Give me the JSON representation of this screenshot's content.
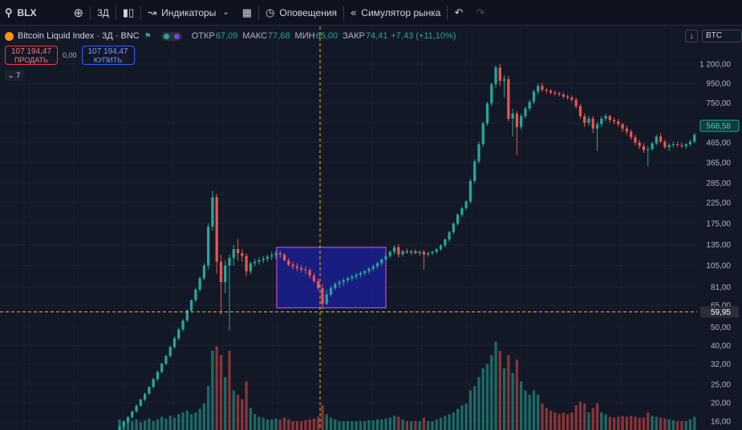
{
  "toolbar": {
    "symbol": "BLX",
    "interval": "3Д",
    "indicators": "Индикаторы",
    "alerts": "Оповещения",
    "replay": "Симулятор рынка",
    "icons": [
      "search-icon",
      "add-symbol-icon",
      "candles-icon",
      "indicators-icon",
      "chevron-down-icon",
      "layouts-icon",
      "alert-clock-icon",
      "replay-icon",
      "undo-icon",
      "redo-icon"
    ]
  },
  "legend": {
    "name": "Bitcoin Liquid Index · 3Д · BNC",
    "open_label": "ОТКР",
    "open_value": "67,09",
    "high_label": "МАКС",
    "high_value": "77,68",
    "low_label": "МИН",
    "low_value": "65,00",
    "close_label": "ЗАКР",
    "close_value": "74,41",
    "change": "+7,43 (+11,10%)"
  },
  "trade": {
    "sell_price": "107 194,47",
    "sell_label": "ПРОДАТЬ",
    "spread": "0,00",
    "buy_price": "107 194,47",
    "buy_label": "КУПИТЬ"
  },
  "collapse": {
    "count": "7"
  },
  "currency": "BTC",
  "colors": {
    "background": "#121826",
    "up": "#26a69a",
    "down": "#ef5350",
    "crosshair": "#f0b90b",
    "box_fill": "#1a1f8f",
    "box_border": "#c04bd6"
  },
  "chart_data": {
    "type": "candlestick",
    "scale": "log",
    "price_axis": [
      "1 200,00",
      "950,00",
      "750,00",
      "590,00",
      "465,00",
      "365,00",
      "285,00",
      "225,00",
      "175,00",
      "135,00",
      "105,00",
      "81,00",
      "65,00",
      "50,00",
      "40,00",
      "32,00",
      "25,00",
      "20,00",
      "16,00"
    ],
    "current_price_label": "568,58",
    "crosshair_price_label": "59,95",
    "crosshair_price": 59.95,
    "highlight_box": {
      "price_top": 131,
      "price_bottom": 63
    },
    "candles": [
      [
        14.5,
        15.2,
        14.2,
        15.0
      ],
      [
        15.0,
        16.1,
        14.8,
        15.9
      ],
      [
        15.9,
        17.0,
        15.5,
        16.8
      ],
      [
        16.8,
        18.2,
        16.5,
        18.0
      ],
      [
        18.0,
        19.6,
        17.7,
        19.3
      ],
      [
        19.3,
        21.0,
        19.0,
        20.8
      ],
      [
        20.8,
        22.6,
        20.3,
        22.3
      ],
      [
        22.3,
        24.5,
        22.0,
        24.2
      ],
      [
        24.2,
        27.0,
        23.8,
        26.6
      ],
      [
        26.6,
        29.5,
        26.0,
        29.0
      ],
      [
        29.0,
        32.5,
        28.5,
        32.0
      ],
      [
        32.0,
        35.8,
        31.5,
        35.2
      ],
      [
        35.2,
        40.0,
        34.6,
        39.2
      ],
      [
        39.2,
        44.5,
        38.5,
        43.5
      ],
      [
        43.5,
        49.5,
        42.5,
        48.5
      ],
      [
        48.5,
        55.0,
        47.5,
        54.0
      ],
      [
        54.0,
        62.0,
        53.0,
        61.0
      ],
      [
        61.0,
        70.0,
        59.5,
        69.0
      ],
      [
        69.0,
        80.0,
        67.5,
        78.5
      ],
      [
        78.5,
        92.0,
        76.5,
        90.0
      ],
      [
        90.0,
        108.0,
        88.0,
        105.0
      ],
      [
        105.0,
        175.0,
        100.0,
        168.0
      ],
      [
        168.0,
        260.0,
        160.0,
        240.0
      ],
      [
        240.0,
        250.0,
        95.0,
        110.0
      ],
      [
        110.0,
        120.0,
        58.0,
        86.0
      ],
      [
        86.0,
        112.0,
        75.0,
        105.0
      ],
      [
        105.0,
        120.0,
        48.0,
        115.0
      ],
      [
        115.0,
        135.0,
        105.0,
        128.0
      ],
      [
        128.0,
        145.0,
        112.0,
        122.0
      ],
      [
        122.0,
        128.0,
        110.0,
        118.0
      ],
      [
        118.0,
        122.0,
        92.0,
        98.0
      ],
      [
        98.0,
        110.0,
        95.0,
        108.0
      ],
      [
        108.0,
        114.0,
        104.0,
        110.0
      ],
      [
        110.0,
        116.0,
        106.0,
        112.0
      ],
      [
        112.0,
        118.0,
        108.0,
        114.0
      ],
      [
        114.0,
        120.0,
        110.0,
        117.0
      ],
      [
        117.0,
        124.0,
        112.0,
        119.0
      ],
      [
        119.0,
        126.0,
        114.0,
        122.0
      ],
      [
        122.0,
        126.0,
        115.0,
        120.0
      ],
      [
        120.0,
        122.0,
        110.0,
        112.0
      ],
      [
        112.0,
        115.0,
        104.0,
        106.0
      ],
      [
        106.0,
        110.0,
        100.0,
        104.0
      ],
      [
        104.0,
        108.0,
        98.0,
        102.0
      ],
      [
        102.0,
        106.0,
        96.0,
        100.0
      ],
      [
        100.0,
        104.0,
        95.0,
        99.0
      ],
      [
        99.0,
        102.0,
        90.0,
        93.0
      ],
      [
        93.0,
        96.0,
        85.0,
        87.0
      ],
      [
        87.0,
        90.0,
        78.0,
        80.0
      ],
      [
        80.0,
        84.0,
        62.0,
        66.0
      ],
      [
        66.0,
        78.0,
        65.0,
        74.0
      ],
      [
        74.0,
        82.0,
        72.0,
        80.0
      ],
      [
        80.0,
        86.0,
        78.0,
        84.0
      ],
      [
        84.0,
        88.0,
        80.0,
        86.0
      ],
      [
        86.0,
        90.0,
        82.0,
        88.0
      ],
      [
        88.0,
        92.0,
        85.0,
        90.0
      ],
      [
        90.0,
        94.0,
        87.0,
        92.0
      ],
      [
        92.0,
        96.0,
        89.0,
        94.0
      ],
      [
        94.0,
        98.0,
        91.0,
        96.0
      ],
      [
        96.0,
        100.0,
        93.0,
        98.0
      ],
      [
        98.0,
        103.0,
        95.0,
        101.0
      ],
      [
        101.0,
        106.0,
        98.0,
        104.0
      ],
      [
        104.0,
        110.0,
        101.0,
        108.0
      ],
      [
        108.0,
        115.0,
        105.0,
        113.0
      ],
      [
        113.0,
        120.0,
        110.0,
        118.0
      ],
      [
        118.0,
        126.0,
        115.0,
        124.0
      ],
      [
        124.0,
        134.0,
        120.0,
        131.0
      ],
      [
        131.0,
        136.0,
        116.0,
        120.0
      ],
      [
        120.0,
        127.0,
        117.0,
        125.0
      ],
      [
        125.0,
        129.0,
        121.0,
        123.0
      ],
      [
        123.0,
        127.0,
        119.0,
        125.0
      ],
      [
        125.0,
        128.0,
        120.0,
        122.0
      ],
      [
        122.0,
        126.0,
        118.0,
        124.0
      ],
      [
        124.0,
        127.0,
        100.0,
        120.0
      ],
      [
        120.0,
        124.0,
        117.0,
        122.0
      ],
      [
        122.0,
        126.0,
        119.0,
        124.0
      ],
      [
        124.0,
        130.0,
        121.0,
        128.0
      ],
      [
        128.0,
        136.0,
        125.0,
        134.0
      ],
      [
        134.0,
        146.0,
        131.0,
        144.0
      ],
      [
        144.0,
        160.0,
        140.0,
        157.0
      ],
      [
        157.0,
        178.0,
        153.0,
        174.0
      ],
      [
        174.0,
        198.0,
        170.0,
        194.0
      ],
      [
        194.0,
        215.0,
        189.0,
        210.0
      ],
      [
        210.0,
        232.0,
        205.0,
        228.0
      ],
      [
        228.0,
        300.0,
        222.0,
        292.0
      ],
      [
        292.0,
        380.0,
        284.0,
        370.0
      ],
      [
        370.0,
        470.0,
        360.0,
        455.0
      ],
      [
        455.0,
        600.0,
        440.0,
        585.0
      ],
      [
        585.0,
        760.0,
        570.0,
        745.0
      ],
      [
        745.0,
        960.0,
        720.0,
        940.0
      ],
      [
        940.0,
        1180.0,
        900.0,
        1150.0
      ],
      [
        1150.0,
        1200.0,
        920.0,
        980.0
      ],
      [
        980.0,
        1050.0,
        800.0,
        1000.0
      ],
      [
        1000.0,
        1040.0,
        600.0,
        620.0
      ],
      [
        620.0,
        700.0,
        500.0,
        660.0
      ],
      [
        660.0,
        680.0,
        400.0,
        560.0
      ],
      [
        560.0,
        660.0,
        540.0,
        640.0
      ],
      [
        640.0,
        720.0,
        620.0,
        700.0
      ],
      [
        700.0,
        780.0,
        680.0,
        760.0
      ],
      [
        760.0,
        880.0,
        740.0,
        860.0
      ],
      [
        860.0,
        950.0,
        830.0,
        920.0
      ],
      [
        920.0,
        960.0,
        860.0,
        880.0
      ],
      [
        880.0,
        900.0,
        840.0,
        870.0
      ],
      [
        870.0,
        890.0,
        830.0,
        850.0
      ],
      [
        850.0,
        870.0,
        820.0,
        840.0
      ],
      [
        840.0,
        860.0,
        810.0,
        830.0
      ],
      [
        830.0,
        850.0,
        790.0,
        810.0
      ],
      [
        810.0,
        830.0,
        780.0,
        800.0
      ],
      [
        800.0,
        820.0,
        760.0,
        780.0
      ],
      [
        780.0,
        800.0,
        700.0,
        720.0
      ],
      [
        720.0,
        740.0,
        620.0,
        640.0
      ],
      [
        640.0,
        660.0,
        560.0,
        590.0
      ],
      [
        590.0,
        640.0,
        570.0,
        620.0
      ],
      [
        620.0,
        640.0,
        520.0,
        550.0
      ],
      [
        550.0,
        600.0,
        420.0,
        580.0
      ],
      [
        580.0,
        640.0,
        560.0,
        620.0
      ],
      [
        620.0,
        660.0,
        600.0,
        640.0
      ],
      [
        640.0,
        650.0,
        590.0,
        610.0
      ],
      [
        610.0,
        630.0,
        580.0,
        600.0
      ],
      [
        600.0,
        620.0,
        560.0,
        580.0
      ],
      [
        580.0,
        590.0,
        530.0,
        550.0
      ],
      [
        550.0,
        570.0,
        510.0,
        530.0
      ],
      [
        530.0,
        545.0,
        480.0,
        495.0
      ],
      [
        495.0,
        510.0,
        450.0,
        465.0
      ],
      [
        465.0,
        480.0,
        430.0,
        445.0
      ],
      [
        445.0,
        460.0,
        410.0,
        425.0
      ],
      [
        425.0,
        445.0,
        350.0,
        430.0
      ],
      [
        430.0,
        470.0,
        420.0,
        460.0
      ],
      [
        460.0,
        510.0,
        450.0,
        500.0
      ],
      [
        500.0,
        520.0,
        460.0,
        470.0
      ],
      [
        470.0,
        480.0,
        430.0,
        440.0
      ],
      [
        440.0,
        460.0,
        420.0,
        450.0
      ],
      [
        450.0,
        470.0,
        435.0,
        455.0
      ],
      [
        455.0,
        470.0,
        440.0,
        450.0
      ],
      [
        450.0,
        465.0,
        435.0,
        445.0
      ],
      [
        445.0,
        460.0,
        430.0,
        455.0
      ],
      [
        455.0,
        480.0,
        445.0,
        470.0
      ],
      [
        470.0,
        520.0,
        460.0,
        510.0
      ],
      [
        510.0,
        580.0,
        500.0,
        568.58
      ]
    ],
    "volumes": [
      [
        0.12,
        "up"
      ],
      [
        0.1,
        "up"
      ],
      [
        0.14,
        "up"
      ],
      [
        0.1,
        "up"
      ],
      [
        0.12,
        "up"
      ],
      [
        0.09,
        "up"
      ],
      [
        0.11,
        "up"
      ],
      [
        0.13,
        "up"
      ],
      [
        0.1,
        "up"
      ],
      [
        0.12,
        "up"
      ],
      [
        0.15,
        "up"
      ],
      [
        0.13,
        "up"
      ],
      [
        0.16,
        "up"
      ],
      [
        0.14,
        "up"
      ],
      [
        0.18,
        "up"
      ],
      [
        0.2,
        "up"
      ],
      [
        0.22,
        "up"
      ],
      [
        0.18,
        "up"
      ],
      [
        0.2,
        "up"
      ],
      [
        0.24,
        "up"
      ],
      [
        0.3,
        "up"
      ],
      [
        0.5,
        "up"
      ],
      [
        0.9,
        "up"
      ],
      [
        0.95,
        "down"
      ],
      [
        0.85,
        "down"
      ],
      [
        0.6,
        "up"
      ],
      [
        0.9,
        "down"
      ],
      [
        0.45,
        "up"
      ],
      [
        0.4,
        "down"
      ],
      [
        0.35,
        "down"
      ],
      [
        0.55,
        "down"
      ],
      [
        0.25,
        "up"
      ],
      [
        0.18,
        "up"
      ],
      [
        0.15,
        "up"
      ],
      [
        0.14,
        "up"
      ],
      [
        0.12,
        "up"
      ],
      [
        0.12,
        "up"
      ],
      [
        0.13,
        "up"
      ],
      [
        0.12,
        "down"
      ],
      [
        0.14,
        "down"
      ],
      [
        0.12,
        "down"
      ],
      [
        0.1,
        "down"
      ],
      [
        0.1,
        "down"
      ],
      [
        0.1,
        "down"
      ],
      [
        0.11,
        "down"
      ],
      [
        0.12,
        "down"
      ],
      [
        0.13,
        "down"
      ],
      [
        0.15,
        "down"
      ],
      [
        0.28,
        "down"
      ],
      [
        0.18,
        "up"
      ],
      [
        0.14,
        "up"
      ],
      [
        0.12,
        "up"
      ],
      [
        0.1,
        "up"
      ],
      [
        0.1,
        "up"
      ],
      [
        0.1,
        "up"
      ],
      [
        0.1,
        "up"
      ],
      [
        0.1,
        "up"
      ],
      [
        0.1,
        "up"
      ],
      [
        0.1,
        "up"
      ],
      [
        0.11,
        "up"
      ],
      [
        0.11,
        "up"
      ],
      [
        0.12,
        "up"
      ],
      [
        0.12,
        "up"
      ],
      [
        0.13,
        "up"
      ],
      [
        0.14,
        "up"
      ],
      [
        0.16,
        "up"
      ],
      [
        0.15,
        "down"
      ],
      [
        0.12,
        "up"
      ],
      [
        0.1,
        "down"
      ],
      [
        0.1,
        "up"
      ],
      [
        0.1,
        "down"
      ],
      [
        0.1,
        "up"
      ],
      [
        0.14,
        "down"
      ],
      [
        0.1,
        "up"
      ],
      [
        0.1,
        "up"
      ],
      [
        0.12,
        "up"
      ],
      [
        0.14,
        "up"
      ],
      [
        0.16,
        "up"
      ],
      [
        0.18,
        "up"
      ],
      [
        0.2,
        "up"
      ],
      [
        0.24,
        "up"
      ],
      [
        0.28,
        "up"
      ],
      [
        0.3,
        "up"
      ],
      [
        0.45,
        "up"
      ],
      [
        0.5,
        "up"
      ],
      [
        0.6,
        "up"
      ],
      [
        0.7,
        "up"
      ],
      [
        0.75,
        "up"
      ],
      [
        0.85,
        "up"
      ],
      [
        1.0,
        "up"
      ],
      [
        0.9,
        "down"
      ],
      [
        0.7,
        "up"
      ],
      [
        0.85,
        "down"
      ],
      [
        0.65,
        "up"
      ],
      [
        0.8,
        "down"
      ],
      [
        0.55,
        "up"
      ],
      [
        0.45,
        "up"
      ],
      [
        0.4,
        "up"
      ],
      [
        0.45,
        "up"
      ],
      [
        0.4,
        "up"
      ],
      [
        0.3,
        "down"
      ],
      [
        0.25,
        "down"
      ],
      [
        0.22,
        "down"
      ],
      [
        0.2,
        "down"
      ],
      [
        0.18,
        "down"
      ],
      [
        0.2,
        "down"
      ],
      [
        0.18,
        "down"
      ],
      [
        0.2,
        "down"
      ],
      [
        0.28,
        "down"
      ],
      [
        0.32,
        "down"
      ],
      [
        0.3,
        "down"
      ],
      [
        0.2,
        "up"
      ],
      [
        0.25,
        "down"
      ],
      [
        0.3,
        "down"
      ],
      [
        0.2,
        "up"
      ],
      [
        0.18,
        "up"
      ],
      [
        0.15,
        "down"
      ],
      [
        0.14,
        "down"
      ],
      [
        0.15,
        "down"
      ],
      [
        0.16,
        "down"
      ],
      [
        0.15,
        "down"
      ],
      [
        0.16,
        "down"
      ],
      [
        0.15,
        "down"
      ],
      [
        0.14,
        "down"
      ],
      [
        0.14,
        "down"
      ],
      [
        0.2,
        "down"
      ],
      [
        0.16,
        "up"
      ],
      [
        0.15,
        "up"
      ],
      [
        0.14,
        "down"
      ],
      [
        0.13,
        "down"
      ],
      [
        0.12,
        "up"
      ],
      [
        0.11,
        "up"
      ],
      [
        0.1,
        "down"
      ],
      [
        0.1,
        "down"
      ],
      [
        0.1,
        "up"
      ],
      [
        0.12,
        "up"
      ],
      [
        0.15,
        "up"
      ],
      [
        0.18,
        "up"
      ]
    ]
  }
}
